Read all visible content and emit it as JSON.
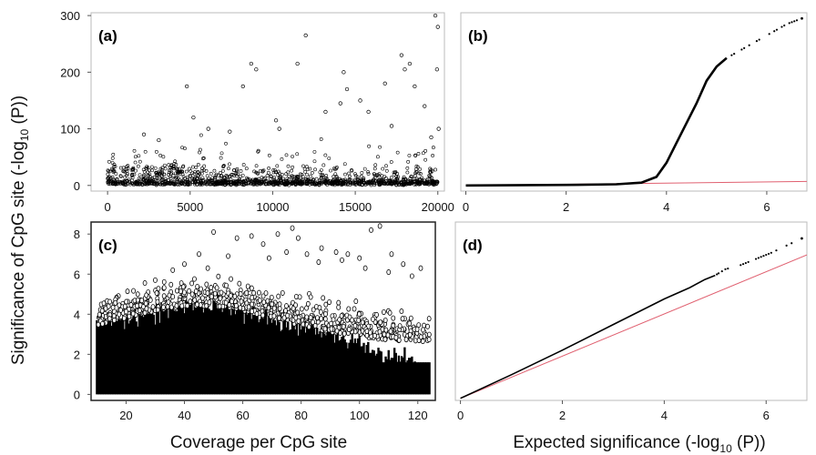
{
  "y_axis_title": {
    "prefix": "Significance of CpG site (-log",
    "sub": "10",
    "suffix": " (P))"
  },
  "x_axis_title_left": "Coverage per CpG site",
  "x_axis_title_right": {
    "prefix": "Expected significance (-log",
    "sub": "10",
    "suffix": " (P))"
  },
  "chart_data": [
    {
      "panel": "(a)",
      "type": "scatter",
      "xlim": [
        -1000,
        20400
      ],
      "ylim": [
        -10,
        305
      ],
      "xticks": [
        0,
        5000,
        10000,
        15000,
        20000
      ],
      "yticks": [
        0,
        100,
        200,
        300
      ],
      "marker": "open-circle",
      "spikes": [
        [
          4800,
          175
        ],
        [
          5200,
          120
        ],
        [
          6100,
          100
        ],
        [
          8200,
          175
        ],
        [
          8700,
          215
        ],
        [
          9000,
          205
        ],
        [
          10200,
          115
        ],
        [
          11500,
          215
        ],
        [
          12000,
          265
        ],
        [
          13200,
          130
        ],
        [
          14100,
          145
        ],
        [
          14300,
          200
        ],
        [
          14500,
          170
        ],
        [
          15300,
          150
        ],
        [
          15800,
          130
        ],
        [
          16800,
          180
        ],
        [
          17200,
          105
        ],
        [
          17800,
          230
        ],
        [
          18000,
          205
        ],
        [
          18300,
          215
        ],
        [
          18600,
          175
        ],
        [
          19200,
          140
        ],
        [
          19600,
          85
        ],
        [
          19850,
          300
        ],
        [
          20000,
          280
        ],
        [
          19950,
          205
        ],
        [
          20050,
          100
        ],
        [
          10400,
          100
        ],
        [
          7400,
          95
        ],
        [
          2200,
          90
        ],
        [
          3100,
          80
        ]
      ]
    },
    {
      "panel": "(b)",
      "type": "qq",
      "xlim": [
        -0.1,
        6.8
      ],
      "ylim": [
        -10,
        305
      ],
      "xticks": [
        0,
        2,
        4,
        6
      ],
      "observed_curve": [
        [
          0,
          0
        ],
        [
          2,
          1
        ],
        [
          3,
          2
        ],
        [
          3.5,
          5
        ],
        [
          3.8,
          15
        ],
        [
          4.0,
          40
        ],
        [
          4.2,
          75
        ],
        [
          4.4,
          110
        ],
        [
          4.6,
          145
        ],
        [
          4.8,
          185
        ],
        [
          5.0,
          210
        ],
        [
          5.2,
          225
        ],
        [
          5.5,
          240
        ],
        [
          5.8,
          255
        ],
        [
          6.1,
          270
        ],
        [
          6.4,
          285
        ],
        [
          6.7,
          295
        ]
      ],
      "expected_line_color": "#e06070",
      "expected_line": [
        [
          0,
          0
        ],
        [
          6.8,
          7
        ]
      ]
    },
    {
      "panel": "(c)",
      "type": "scatter",
      "xlim": [
        8,
        126
      ],
      "ylim": [
        -0.3,
        8.6
      ],
      "xticks": [
        20,
        40,
        60,
        80,
        100,
        120
      ],
      "yticks": [
        0,
        2,
        4,
        6,
        8
      ],
      "marker": "open-circle",
      "outliers": [
        [
          50,
          8.1
        ],
        [
          58,
          7.8
        ],
        [
          63,
          7.9
        ],
        [
          67,
          7.5
        ],
        [
          72,
          8.0
        ],
        [
          77,
          8.3
        ],
        [
          79,
          7.8
        ],
        [
          82,
          7.0
        ],
        [
          87,
          7.3
        ],
        [
          92,
          7.1
        ],
        [
          96,
          7.0
        ],
        [
          100,
          6.8
        ],
        [
          104,
          8.2
        ],
        [
          107,
          8.4
        ],
        [
          111,
          7.0
        ],
        [
          115,
          6.5
        ],
        [
          121,
          6.3
        ],
        [
          45,
          7.0
        ],
        [
          40,
          6.5
        ],
        [
          36,
          6.2
        ],
        [
          55,
          6.9
        ],
        [
          69,
          6.8
        ],
        [
          75,
          7.1
        ],
        [
          86,
          6.6
        ],
        [
          94,
          6.7
        ],
        [
          102,
          6.3
        ],
        [
          110,
          6.1
        ],
        [
          118,
          5.9
        ],
        [
          24,
          5.0
        ],
        [
          30,
          5.7
        ],
        [
          48,
          6.3
        ]
      ]
    },
    {
      "panel": "(d)",
      "type": "qq",
      "xlim": [
        -0.1,
        6.8
      ],
      "ylim": [
        -0.1,
        8.6
      ],
      "xticks": [
        0,
        2,
        4,
        6
      ],
      "observed_curve": [
        [
          0,
          0
        ],
        [
          1,
          1.15
        ],
        [
          2,
          2.35
        ],
        [
          3,
          3.6
        ],
        [
          4,
          4.85
        ],
        [
          4.5,
          5.4
        ],
        [
          4.8,
          5.8
        ],
        [
          5.0,
          6.0
        ],
        [
          5.2,
          6.3
        ],
        [
          5.5,
          6.5
        ],
        [
          5.8,
          6.8
        ],
        [
          6.1,
          7.1
        ],
        [
          6.7,
          7.8
        ]
      ],
      "expected_line_color": "#e06070",
      "expected_line": [
        [
          0,
          0
        ],
        [
          6.8,
          7.0
        ]
      ]
    }
  ]
}
